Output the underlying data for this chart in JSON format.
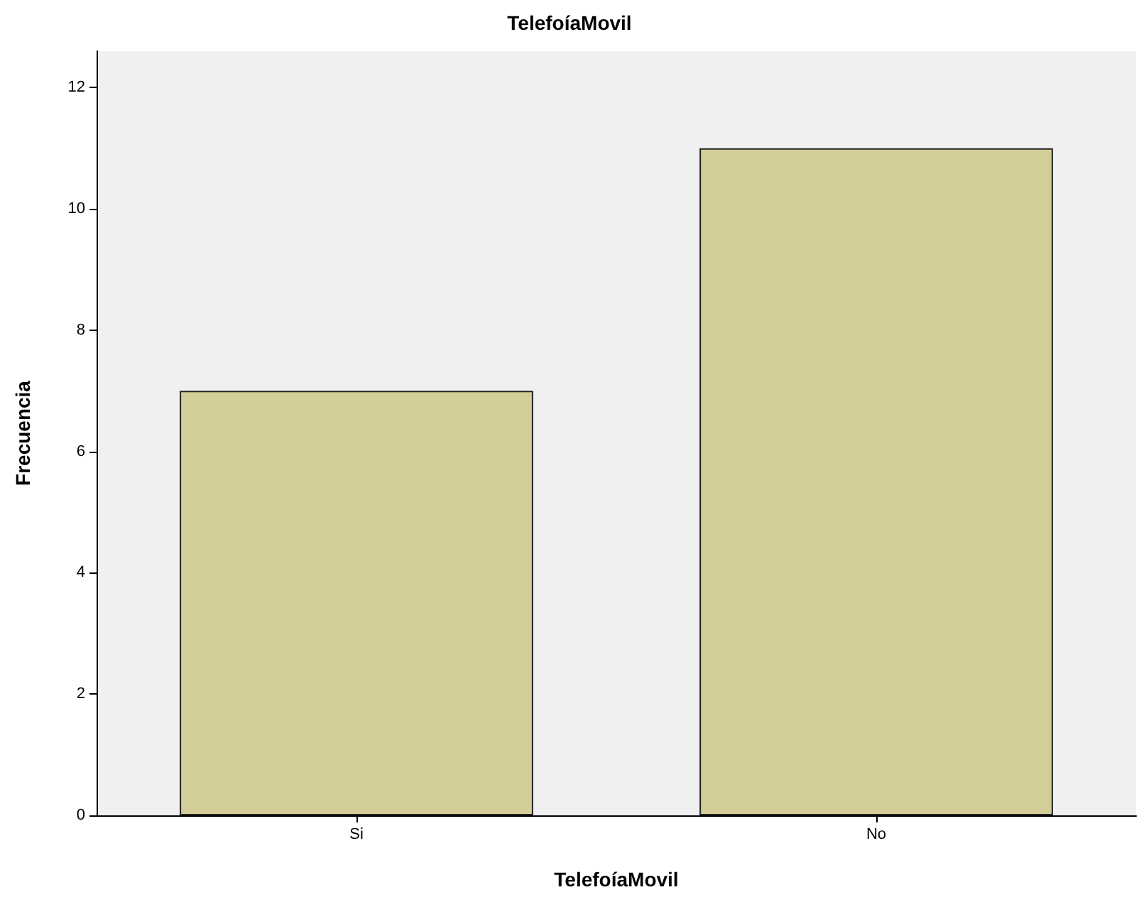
{
  "chart_data": {
    "type": "bar",
    "title": "TelefoíaMovil",
    "xlabel": "TelefoíaMovil",
    "ylabel": "Frecuencia",
    "categories": [
      "Si",
      "No"
    ],
    "values": [
      7,
      11
    ],
    "color": "#d3ce97",
    "ylim": [
      0,
      12.6
    ],
    "yticks": [
      0,
      2,
      4,
      6,
      8,
      10,
      12
    ],
    "grid": false
  }
}
